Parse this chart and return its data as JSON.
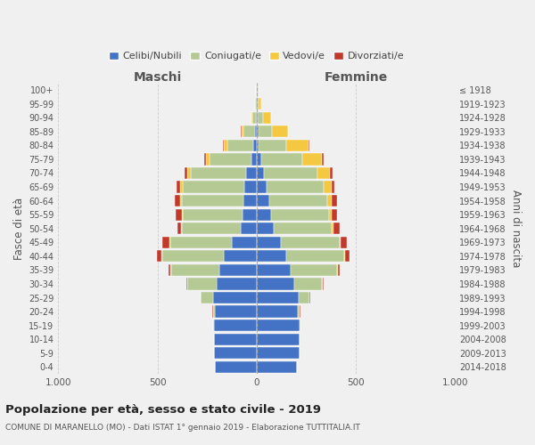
{
  "age_groups": [
    "0-4",
    "5-9",
    "10-14",
    "15-19",
    "20-24",
    "25-29",
    "30-34",
    "35-39",
    "40-44",
    "45-49",
    "50-54",
    "55-59",
    "60-64",
    "65-69",
    "70-74",
    "75-79",
    "80-84",
    "85-89",
    "90-94",
    "95-99",
    "100+"
  ],
  "birth_years": [
    "2014-2018",
    "2009-2013",
    "2004-2008",
    "1999-2003",
    "1994-1998",
    "1989-1993",
    "1984-1988",
    "1979-1983",
    "1974-1978",
    "1969-1973",
    "1964-1968",
    "1959-1963",
    "1954-1958",
    "1949-1953",
    "1944-1948",
    "1939-1943",
    "1934-1938",
    "1929-1933",
    "1924-1928",
    "1919-1923",
    "≤ 1918"
  ],
  "male": {
    "celibi": [
      210,
      215,
      215,
      215,
      210,
      220,
      200,
      190,
      165,
      125,
      78,
      72,
      68,
      62,
      52,
      28,
      18,
      8,
      4,
      2,
      1
    ],
    "coniugati": [
      0,
      0,
      2,
      5,
      10,
      62,
      150,
      242,
      312,
      312,
      298,
      302,
      308,
      310,
      278,
      208,
      128,
      58,
      18,
      5,
      2
    ],
    "vedovi": [
      0,
      0,
      0,
      0,
      0,
      0,
      0,
      2,
      5,
      5,
      5,
      5,
      10,
      15,
      18,
      20,
      20,
      10,
      5,
      2,
      0
    ],
    "divorziati": [
      0,
      0,
      0,
      0,
      2,
      2,
      5,
      10,
      20,
      35,
      20,
      28,
      28,
      15,
      14,
      10,
      5,
      2,
      0,
      0,
      0
    ]
  },
  "female": {
    "nubili": [
      205,
      215,
      215,
      215,
      208,
      212,
      188,
      172,
      148,
      122,
      88,
      72,
      62,
      52,
      38,
      22,
      12,
      8,
      4,
      2,
      2
    ],
    "coniugate": [
      0,
      0,
      2,
      5,
      10,
      56,
      142,
      235,
      295,
      295,
      290,
      292,
      295,
      288,
      268,
      208,
      138,
      68,
      28,
      8,
      2
    ],
    "vedove": [
      0,
      0,
      0,
      0,
      0,
      0,
      2,
      2,
      5,
      5,
      10,
      15,
      20,
      40,
      65,
      100,
      110,
      80,
      40,
      15,
      5
    ],
    "divorziate": [
      0,
      0,
      0,
      0,
      2,
      2,
      5,
      10,
      20,
      35,
      30,
      28,
      28,
      14,
      10,
      8,
      5,
      4,
      2,
      0,
      0
    ]
  },
  "colors": {
    "celibi": "#4472c4",
    "coniugati": "#b5c994",
    "vedovi": "#f5c842",
    "divorziati": "#c0392b"
  },
  "legend_labels": [
    "Celibi/Nubili",
    "Coniugati/e",
    "Vedovi/e",
    "Divorziati/e"
  ],
  "title": "Popolazione per età, sesso e stato civile - 2019",
  "subtitle": "COMUNE DI MARANELLO (MO) - Dati ISTAT 1° gennaio 2019 - Elaborazione TUTTITALIA.IT",
  "xlabel_left": "Maschi",
  "xlabel_right": "Femmine",
  "ylabel_left": "Fasce di età",
  "ylabel_right": "Anni di nascita",
  "xlim": 1000,
  "bg_color": "#f0f0f0",
  "bar_height": 0.85
}
